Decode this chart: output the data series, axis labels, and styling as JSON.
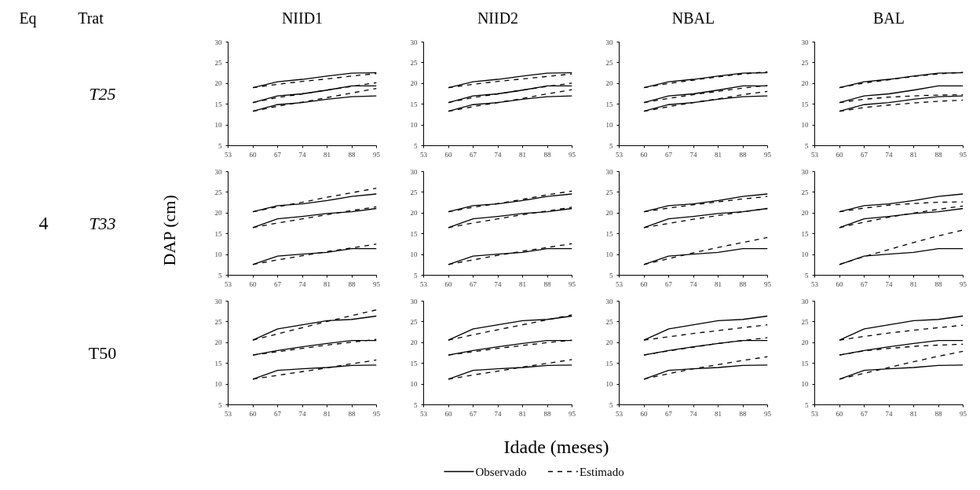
{
  "chart_data": [
    {
      "type": "line",
      "title": "NIID1",
      "subtitle": "T25",
      "annotations": [
        "Eq",
        "Trat"
      ],
      "x": [
        60,
        67,
        74,
        81,
        88,
        95
      ],
      "xlim": [
        53,
        95
      ],
      "xticks": [
        53,
        60,
        67,
        74,
        81,
        88,
        95
      ],
      "ylim": [
        5,
        30
      ],
      "yticks": [
        5,
        10,
        15,
        20,
        25,
        30
      ],
      "series": [
        {
          "color": "#000000",
          "line_style": "solid",
          "values": [
            19.0,
            20.4,
            21.0,
            21.8,
            22.5,
            22.6
          ]
        },
        {
          "color": "#000000",
          "line_style": "solid",
          "values": [
            15.4,
            17.0,
            17.5,
            18.4,
            19.4,
            19.4
          ]
        },
        {
          "color": "#000000",
          "line_style": "solid",
          "values": [
            13.3,
            14.9,
            15.4,
            16.2,
            16.8,
            17.0
          ]
        },
        {
          "color": "#000000",
          "line_style": "dashed",
          "values": [
            19.0,
            19.8,
            20.5,
            21.1,
            21.8,
            22.4
          ]
        },
        {
          "color": "#000000",
          "line_style": "dashed",
          "values": [
            15.4,
            16.6,
            17.5,
            18.4,
            19.3,
            20.2
          ]
        },
        {
          "color": "#000000",
          "line_style": "dashed",
          "values": [
            13.3,
            14.5,
            15.5,
            16.6,
            17.7,
            18.8
          ]
        }
      ]
    },
    {
      "type": "line",
      "title": "NIID2",
      "x": [
        60,
        67,
        74,
        81,
        88,
        95
      ],
      "xlim": [
        53,
        95
      ],
      "xticks": [
        53,
        60,
        67,
        74,
        81,
        88,
        95
      ],
      "ylim": [
        5,
        30
      ],
      "yticks": [
        5,
        10,
        15,
        20,
        25,
        30
      ],
      "series": [
        {
          "color": "#000000",
          "line_style": "solid",
          "values": [
            19.0,
            20.4,
            21.0,
            21.8,
            22.5,
            22.6
          ]
        },
        {
          "color": "#000000",
          "line_style": "solid",
          "values": [
            15.4,
            17.0,
            17.5,
            18.4,
            19.4,
            19.4
          ]
        },
        {
          "color": "#000000",
          "line_style": "solid",
          "values": [
            13.3,
            14.9,
            15.4,
            16.2,
            16.8,
            17.0
          ]
        },
        {
          "color": "#000000",
          "line_style": "dashed",
          "values": [
            19.0,
            19.8,
            20.5,
            21.1,
            21.7,
            22.3
          ]
        },
        {
          "color": "#000000",
          "line_style": "dashed",
          "values": [
            15.4,
            16.6,
            17.5,
            18.4,
            19.3,
            20.1
          ]
        },
        {
          "color": "#000000",
          "line_style": "dashed",
          "values": [
            13.3,
            14.4,
            15.4,
            16.4,
            17.5,
            18.5
          ]
        }
      ]
    },
    {
      "type": "line",
      "title": "NBAL",
      "x": [
        60,
        67,
        74,
        81,
        88,
        95
      ],
      "xlim": [
        53,
        95
      ],
      "xticks": [
        53,
        60,
        67,
        74,
        81,
        88,
        95
      ],
      "ylim": [
        5,
        30
      ],
      "yticks": [
        5,
        10,
        15,
        20,
        25,
        30
      ],
      "series": [
        {
          "color": "#000000",
          "line_style": "solid",
          "values": [
            19.0,
            20.4,
            21.0,
            21.8,
            22.5,
            22.6
          ]
        },
        {
          "color": "#000000",
          "line_style": "solid",
          "values": [
            15.4,
            17.0,
            17.5,
            18.4,
            19.4,
            19.4
          ]
        },
        {
          "color": "#000000",
          "line_style": "solid",
          "values": [
            13.3,
            14.9,
            15.4,
            16.2,
            16.8,
            17.0
          ]
        },
        {
          "color": "#000000",
          "line_style": "dashed",
          "values": [
            19.0,
            20.0,
            20.8,
            21.6,
            22.3,
            22.8
          ]
        },
        {
          "color": "#000000",
          "line_style": "dashed",
          "values": [
            15.4,
            16.4,
            17.3,
            18.1,
            18.9,
            19.5
          ]
        },
        {
          "color": "#000000",
          "line_style": "dashed",
          "values": [
            13.3,
            14.4,
            15.4,
            16.3,
            17.3,
            18.1
          ]
        }
      ]
    },
    {
      "type": "line",
      "title": "BAL",
      "x": [
        60,
        67,
        74,
        81,
        88,
        95
      ],
      "xlim": [
        53,
        95
      ],
      "xticks": [
        53,
        60,
        67,
        74,
        81,
        88,
        95
      ],
      "ylim": [
        5,
        30
      ],
      "yticks": [
        5,
        10,
        15,
        20,
        25,
        30
      ],
      "series": [
        {
          "color": "#000000",
          "line_style": "solid",
          "values": [
            19.0,
            20.4,
            21.0,
            21.8,
            22.5,
            22.6
          ]
        },
        {
          "color": "#000000",
          "line_style": "solid",
          "values": [
            15.4,
            17.0,
            17.5,
            18.4,
            19.4,
            19.4
          ]
        },
        {
          "color": "#000000",
          "line_style": "solid",
          "values": [
            13.3,
            14.9,
            15.4,
            16.2,
            16.8,
            17.0
          ]
        },
        {
          "color": "#000000",
          "line_style": "dashed",
          "values": [
            19.0,
            20.1,
            20.9,
            21.7,
            22.3,
            22.7
          ]
        },
        {
          "color": "#000000",
          "line_style": "dashed",
          "values": [
            15.4,
            16.2,
            16.7,
            17.0,
            17.2,
            17.3
          ]
        },
        {
          "color": "#000000",
          "line_style": "dashed",
          "values": [
            13.3,
            14.2,
            14.8,
            15.3,
            15.7,
            16.0
          ]
        }
      ]
    },
    {
      "type": "line",
      "subtitle": "T33",
      "annotations": [
        "4"
      ],
      "ylabel": "DAP (cm)",
      "x": [
        60,
        67,
        74,
        81,
        88,
        95
      ],
      "xlim": [
        53,
        95
      ],
      "xticks": [
        53,
        60,
        67,
        74,
        81,
        88,
        95
      ],
      "ylim": [
        5,
        30
      ],
      "yticks": [
        5,
        10,
        15,
        20,
        25,
        30
      ],
      "series": [
        {
          "color": "#000000",
          "line_style": "solid",
          "values": [
            20.3,
            21.8,
            22.2,
            23.0,
            24.0,
            24.6
          ]
        },
        {
          "color": "#000000",
          "line_style": "solid",
          "values": [
            16.5,
            18.6,
            19.2,
            19.9,
            20.3,
            21.1
          ]
        },
        {
          "color": "#000000",
          "line_style": "solid",
          "values": [
            7.6,
            9.6,
            10.1,
            10.5,
            11.4,
            11.4
          ]
        },
        {
          "color": "#000000",
          "line_style": "dashed",
          "values": [
            20.3,
            21.5,
            22.6,
            23.8,
            24.9,
            26.0
          ]
        },
        {
          "color": "#000000",
          "line_style": "dashed",
          "values": [
            16.5,
            17.6,
            18.6,
            19.6,
            20.6,
            21.5
          ]
        },
        {
          "color": "#000000",
          "line_style": "dashed",
          "values": [
            7.6,
            8.7,
            9.7,
            10.7,
            11.6,
            12.5
          ]
        }
      ]
    },
    {
      "type": "line",
      "x": [
        60,
        67,
        74,
        81,
        88,
        95
      ],
      "xlim": [
        53,
        95
      ],
      "xticks": [
        53,
        60,
        67,
        74,
        81,
        88,
        95
      ],
      "ylim": [
        5,
        30
      ],
      "yticks": [
        5,
        10,
        15,
        20,
        25,
        30
      ],
      "series": [
        {
          "color": "#000000",
          "line_style": "solid",
          "values": [
            20.3,
            21.8,
            22.2,
            23.0,
            24.0,
            24.6
          ]
        },
        {
          "color": "#000000",
          "line_style": "solid",
          "values": [
            16.5,
            18.6,
            19.2,
            19.9,
            20.3,
            21.1
          ]
        },
        {
          "color": "#000000",
          "line_style": "solid",
          "values": [
            7.6,
            9.6,
            10.1,
            10.5,
            11.4,
            11.4
          ]
        },
        {
          "color": "#000000",
          "line_style": "dashed",
          "values": [
            20.3,
            21.4,
            22.3,
            23.3,
            24.4,
            25.3
          ]
        },
        {
          "color": "#000000",
          "line_style": "dashed",
          "values": [
            16.5,
            17.6,
            18.6,
            19.6,
            20.5,
            21.4
          ]
        },
        {
          "color": "#000000",
          "line_style": "dashed",
          "values": [
            7.6,
            8.7,
            9.8,
            10.8,
            11.7,
            12.6
          ]
        }
      ]
    },
    {
      "type": "line",
      "x": [
        60,
        67,
        74,
        81,
        88,
        95
      ],
      "xlim": [
        53,
        95
      ],
      "xticks": [
        53,
        60,
        67,
        74,
        81,
        88,
        95
      ],
      "ylim": [
        5,
        30
      ],
      "yticks": [
        5,
        10,
        15,
        20,
        25,
        30
      ],
      "series": [
        {
          "color": "#000000",
          "line_style": "solid",
          "values": [
            20.3,
            21.8,
            22.2,
            23.0,
            24.0,
            24.6
          ]
        },
        {
          "color": "#000000",
          "line_style": "solid",
          "values": [
            16.5,
            18.6,
            19.2,
            19.9,
            20.3,
            21.1
          ]
        },
        {
          "color": "#000000",
          "line_style": "solid",
          "values": [
            7.6,
            9.6,
            10.1,
            10.5,
            11.4,
            11.4
          ]
        },
        {
          "color": "#000000",
          "line_style": "dashed",
          "values": [
            20.3,
            21.2,
            22.0,
            22.7,
            23.4,
            24.0
          ]
        },
        {
          "color": "#000000",
          "line_style": "dashed",
          "values": [
            16.5,
            17.5,
            18.5,
            19.4,
            20.3,
            21.1
          ]
        },
        {
          "color": "#000000",
          "line_style": "dashed",
          "values": [
            7.6,
            9.0,
            10.4,
            11.7,
            12.9,
            14.1
          ]
        }
      ]
    },
    {
      "type": "line",
      "x": [
        60,
        67,
        74,
        81,
        88,
        95
      ],
      "xlim": [
        53,
        95
      ],
      "xticks": [
        53,
        60,
        67,
        74,
        81,
        88,
        95
      ],
      "ylim": [
        5,
        30
      ],
      "yticks": [
        5,
        10,
        15,
        20,
        25,
        30
      ],
      "series": [
        {
          "color": "#000000",
          "line_style": "solid",
          "values": [
            20.3,
            21.8,
            22.2,
            23.0,
            24.0,
            24.6
          ]
        },
        {
          "color": "#000000",
          "line_style": "solid",
          "values": [
            16.5,
            18.6,
            19.2,
            19.9,
            20.3,
            21.1
          ]
        },
        {
          "color": "#000000",
          "line_style": "solid",
          "values": [
            7.6,
            9.6,
            10.1,
            10.5,
            11.4,
            11.4
          ]
        },
        {
          "color": "#000000",
          "line_style": "dashed",
          "values": [
            20.3,
            21.2,
            21.9,
            22.3,
            22.6,
            22.7
          ]
        },
        {
          "color": "#000000",
          "line_style": "dashed",
          "values": [
            16.5,
            17.8,
            19.0,
            20.0,
            20.9,
            21.7
          ]
        },
        {
          "color": "#000000",
          "line_style": "dashed",
          "values": [
            7.6,
            9.5,
            11.2,
            12.9,
            14.5,
            15.9
          ]
        }
      ]
    },
    {
      "type": "line",
      "subtitle": "T50",
      "x": [
        60,
        67,
        74,
        81,
        88,
        95
      ],
      "xlim": [
        53,
        95
      ],
      "xticks": [
        53,
        60,
        67,
        74,
        81,
        88,
        95
      ],
      "ylim": [
        5,
        30
      ],
      "yticks": [
        5,
        10,
        15,
        20,
        25,
        30
      ],
      "series": [
        {
          "color": "#000000",
          "line_style": "solid",
          "values": [
            20.6,
            23.3,
            24.3,
            25.3,
            25.6,
            26.4
          ]
        },
        {
          "color": "#000000",
          "line_style": "solid",
          "values": [
            17.0,
            18.1,
            19.0,
            19.8,
            20.5,
            20.5
          ]
        },
        {
          "color": "#000000",
          "line_style": "solid",
          "values": [
            11.2,
            13.3,
            13.7,
            14.0,
            14.5,
            14.6
          ]
        },
        {
          "color": "#000000",
          "line_style": "dashed",
          "values": [
            20.6,
            22.1,
            23.6,
            25.1,
            26.5,
            27.9
          ]
        },
        {
          "color": "#000000",
          "line_style": "dashed",
          "values": [
            17.0,
            17.8,
            18.6,
            19.4,
            20.1,
            20.8
          ]
        },
        {
          "color": "#000000",
          "line_style": "dashed",
          "values": [
            11.2,
            12.1,
            13.0,
            13.9,
            14.9,
            15.8
          ]
        }
      ]
    },
    {
      "type": "line",
      "xlabel": "Idade (meses)",
      "x": [
        60,
        67,
        74,
        81,
        88,
        95
      ],
      "xlim": [
        53,
        95
      ],
      "xticks": [
        53,
        60,
        67,
        74,
        81,
        88,
        95
      ],
      "ylim": [
        5,
        30
      ],
      "yticks": [
        5,
        10,
        15,
        20,
        25,
        30
      ],
      "series": [
        {
          "color": "#000000",
          "line_style": "solid",
          "values": [
            20.6,
            23.3,
            24.3,
            25.3,
            25.6,
            26.4
          ]
        },
        {
          "color": "#000000",
          "line_style": "solid",
          "values": [
            17.0,
            18.1,
            19.0,
            19.8,
            20.5,
            20.5
          ]
        },
        {
          "color": "#000000",
          "line_style": "solid",
          "values": [
            11.2,
            13.3,
            13.7,
            14.0,
            14.5,
            14.6
          ]
        },
        {
          "color": "#000000",
          "line_style": "dashed",
          "values": [
            20.6,
            21.9,
            23.1,
            24.3,
            25.5,
            26.7
          ]
        },
        {
          "color": "#000000",
          "line_style": "dashed",
          "values": [
            17.0,
            17.8,
            18.6,
            19.3,
            20.0,
            20.6
          ]
        },
        {
          "color": "#000000",
          "line_style": "dashed",
          "values": [
            11.2,
            12.2,
            13.1,
            14.1,
            15.0,
            15.9
          ]
        }
      ]
    },
    {
      "type": "line",
      "x": [
        60,
        67,
        74,
        81,
        88,
        95
      ],
      "xlim": [
        53,
        95
      ],
      "xticks": [
        53,
        60,
        67,
        74,
        81,
        88,
        95
      ],
      "ylim": [
        5,
        30
      ],
      "yticks": [
        5,
        10,
        15,
        20,
        25,
        30
      ],
      "series": [
        {
          "color": "#000000",
          "line_style": "solid",
          "values": [
            20.6,
            23.3,
            24.3,
            25.3,
            25.6,
            26.4
          ]
        },
        {
          "color": "#000000",
          "line_style": "solid",
          "values": [
            17.0,
            18.1,
            19.0,
            19.8,
            20.5,
            20.5
          ]
        },
        {
          "color": "#000000",
          "line_style": "solid",
          "values": [
            11.2,
            13.3,
            13.7,
            14.0,
            14.5,
            14.6
          ]
        },
        {
          "color": "#000000",
          "line_style": "dashed",
          "values": [
            20.6,
            21.4,
            22.2,
            22.9,
            23.6,
            24.3
          ]
        },
        {
          "color": "#000000",
          "line_style": "dashed",
          "values": [
            17.0,
            18.0,
            18.9,
            19.8,
            20.5,
            21.2
          ]
        },
        {
          "color": "#000000",
          "line_style": "dashed",
          "values": [
            11.2,
            12.5,
            13.7,
            14.7,
            15.7,
            16.6
          ]
        }
      ]
    },
    {
      "type": "line",
      "legend": "bottom",
      "x": [
        60,
        67,
        74,
        81,
        88,
        95
      ],
      "xlim": [
        53,
        95
      ],
      "xticks": [
        53,
        60,
        67,
        74,
        81,
        88,
        95
      ],
      "ylim": [
        5,
        30
      ],
      "yticks": [
        5,
        10,
        15,
        20,
        25,
        30
      ],
      "series": [
        {
          "name": "Observado",
          "color": "#000000",
          "line_style": "solid",
          "values": [
            20.6,
            23.3,
            24.3,
            25.3,
            25.6,
            26.4
          ]
        },
        {
          "color": "#000000",
          "line_style": "solid",
          "values": [
            17.0,
            18.1,
            19.0,
            19.8,
            20.5,
            20.5
          ]
        },
        {
          "color": "#000000",
          "line_style": "solid",
          "values": [
            11.2,
            13.3,
            13.7,
            14.0,
            14.5,
            14.6
          ]
        },
        {
          "name": "Estimado",
          "color": "#000000",
          "line_style": "dashed",
          "values": [
            20.6,
            21.5,
            22.3,
            23.0,
            23.6,
            24.2
          ]
        },
        {
          "color": "#000000",
          "line_style": "dashed",
          "values": [
            17.0,
            18.0,
            18.6,
            19.1,
            19.4,
            19.6
          ]
        },
        {
          "color": "#000000",
          "line_style": "dashed",
          "values": [
            11.2,
            12.6,
            14.0,
            15.4,
            16.7,
            17.9
          ]
        }
      ]
    }
  ]
}
